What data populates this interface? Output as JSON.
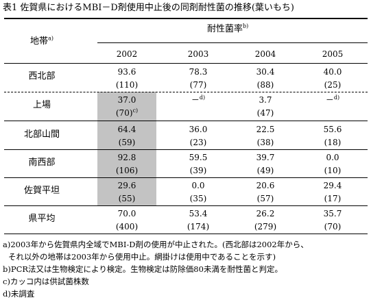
{
  "title": "表1  佐賀県におけるMBI－D剤使用中止後の同剤耐性菌の推移(葉いもち)",
  "header": {
    "region_label": "地帯",
    "region_sup": "a)",
    "group_label": "耐性菌率",
    "group_sup": "b)",
    "years": [
      "2002",
      "2003",
      "2004",
      "2005"
    ]
  },
  "rows": [
    {
      "region": "西北部",
      "rates": [
        "93.6",
        "78.3",
        "30.4",
        "40.0"
      ],
      "counts": [
        "(110)",
        "(77)",
        "(88)",
        "(25)"
      ]
    },
    {
      "region": "上場",
      "rates": [
        "37.0",
        "－",
        "3.7",
        "－"
      ],
      "counts": [
        "(70)",
        "",
        "(47)",
        ""
      ],
      "sups": [
        "c)",
        "d)",
        "",
        "d)"
      ]
    },
    {
      "region": "北部山間",
      "rates": [
        "64.4",
        "36.0",
        "22.5",
        "55.6"
      ],
      "counts": [
        "(59)",
        "(23)",
        "(38)",
        "(18)"
      ]
    },
    {
      "region": "南西部",
      "rates": [
        "92.8",
        "59.5",
        "39.7",
        "0.0"
      ],
      "counts": [
        "(106)",
        "(39)",
        "(49)",
        "(10)"
      ]
    },
    {
      "region": "佐賀平坦",
      "rates": [
        "29.6",
        "0.0",
        "20.6",
        "29.4"
      ],
      "counts": [
        "(55)",
        "(35)",
        "(57)",
        "(17)"
      ]
    },
    {
      "region": "県平均",
      "rates": [
        "70.0",
        "53.4",
        "26.2",
        "35.7"
      ],
      "counts": [
        "(400)",
        "(174)",
        "(279)",
        "(70)"
      ]
    }
  ],
  "notes": [
    "a)2003年から佐賀県内全域でMBI-D剤の使用が中止された。(西北部は2002年から、",
    "  それ以外の地帯は2003年から使用中止。網掛けは使用中であることを示す)",
    "b)PCR法又は生物検定により検定。生物検定は防除価80未満を耐性菌と判定。",
    "c)カッコ内は供試菌株数",
    "d)未調査"
  ],
  "colors": {
    "shade": "#c3c3c3"
  }
}
